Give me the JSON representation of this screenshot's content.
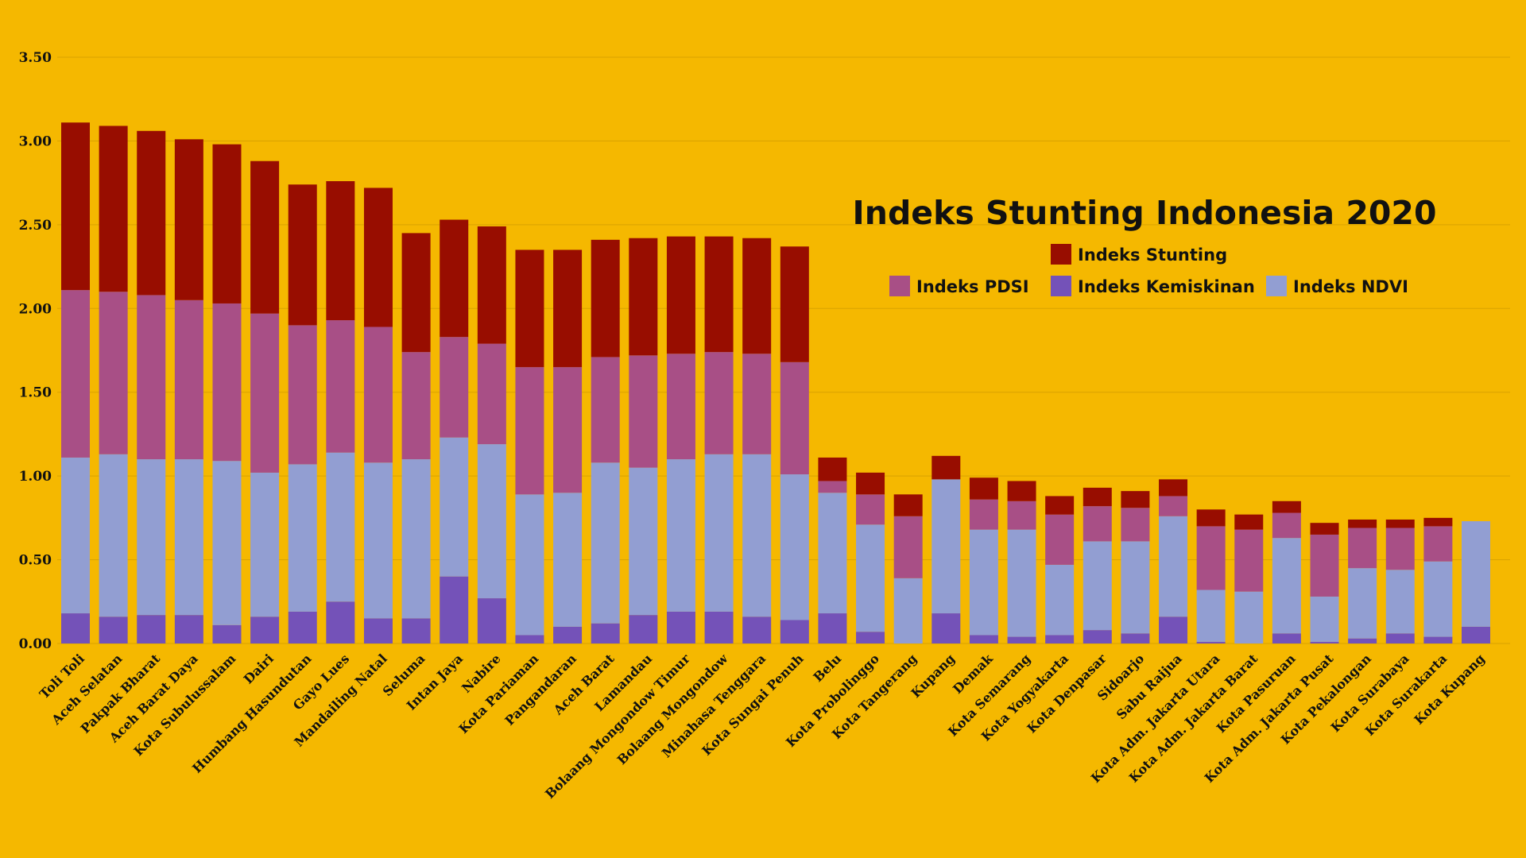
{
  "chart_data": {
    "type": "bar",
    "stacked": true,
    "title": "Indeks Stunting Indonesia 2020",
    "xlabel": "",
    "ylabel": "",
    "ylim": [
      0,
      3.5
    ],
    "yticks": [
      "0.00",
      "0.50",
      "1.00",
      "1.50",
      "2.00",
      "2.50",
      "3.00",
      "3.50"
    ],
    "grid": true,
    "legend_position": "right, below title",
    "background_color": "#F5B800",
    "categories": [
      "Toli Toli",
      "Aceh Selatan",
      "Pakpak Bharat",
      "Aceh Barat Daya",
      "Kota Subulussalam",
      "Dairi",
      "Humbang Hasundutan",
      "Gayo Lues",
      "Mandailing Natal",
      "Seluma",
      "Intan Jaya",
      "Nabire",
      "Kota Pariaman",
      "Pangandaran",
      "Aceh Barat",
      "Lamandau",
      "Bolaang Mongondow Timur",
      "Bolaang Mongondow",
      "Minahasa Tenggara",
      "Kota Sungai Penuh",
      "Belu",
      "Kota Probolinggo",
      "Kota Tangerang",
      "Kupang",
      "Demak",
      "Kota Semarang",
      "Kota Yogyakarta",
      "Kota Denpasar",
      "Sidoarjo",
      "Sabu Raijua",
      "Kota Adm. Jakarta Utara",
      "Kota Adm. Jakarta Barat",
      "Kota Pasuruan",
      "Kota Adm. Jakarta Pusat",
      "Kota Pekalongan",
      "Kota Surabaya",
      "Kota Surakarta",
      "Kota Kupang"
    ],
    "series": [
      {
        "name": "Indeks Kemiskinan",
        "color": "#7452B8",
        "values": [
          0.18,
          0.16,
          0.17,
          0.17,
          0.11,
          0.16,
          0.19,
          0.25,
          0.15,
          0.15,
          0.4,
          0.27,
          0.05,
          0.1,
          0.12,
          0.17,
          0.19,
          0.19,
          0.16,
          0.14,
          0.18,
          0.07,
          0.0,
          0.18,
          0.05,
          0.04,
          0.05,
          0.08,
          0.06,
          0.16,
          0.01,
          0.0,
          0.06,
          0.01,
          0.03,
          0.06,
          0.04,
          0.1
        ]
      },
      {
        "name": "Indeks NDVI",
        "color": "#929ED2",
        "values": [
          0.93,
          0.97,
          0.93,
          0.93,
          0.98,
          0.86,
          0.88,
          0.89,
          0.93,
          0.95,
          0.83,
          0.92,
          0.84,
          0.8,
          0.96,
          0.88,
          0.91,
          0.94,
          0.97,
          0.87,
          0.72,
          0.64,
          0.39,
          0.8,
          0.63,
          0.64,
          0.42,
          0.53,
          0.55,
          0.6,
          0.31,
          0.31,
          0.57,
          0.27,
          0.42,
          0.38,
          0.45,
          0.63
        ]
      },
      {
        "name": "Indeks PDSI",
        "color": "#A84F86",
        "values": [
          1.0,
          0.97,
          0.98,
          0.95,
          0.94,
          0.95,
          0.83,
          0.79,
          0.81,
          0.64,
          0.6,
          0.6,
          0.76,
          0.75,
          0.63,
          0.67,
          0.63,
          0.61,
          0.6,
          0.67,
          0.07,
          0.18,
          0.37,
          0.0,
          0.18,
          0.17,
          0.3,
          0.21,
          0.2,
          0.12,
          0.38,
          0.37,
          0.15,
          0.37,
          0.24,
          0.25,
          0.21,
          0.0
        ]
      },
      {
        "name": "Indeks Stunting",
        "color": "#980D00",
        "values": [
          1.0,
          0.99,
          0.98,
          0.96,
          0.95,
          0.91,
          0.84,
          0.83,
          0.83,
          0.71,
          0.7,
          0.7,
          0.7,
          0.7,
          0.7,
          0.7,
          0.7,
          0.69,
          0.69,
          0.69,
          0.14,
          0.13,
          0.13,
          0.14,
          0.13,
          0.12,
          0.11,
          0.11,
          0.1,
          0.1,
          0.1,
          0.09,
          0.07,
          0.07,
          0.05,
          0.05,
          0.05,
          0.0
        ]
      }
    ]
  }
}
